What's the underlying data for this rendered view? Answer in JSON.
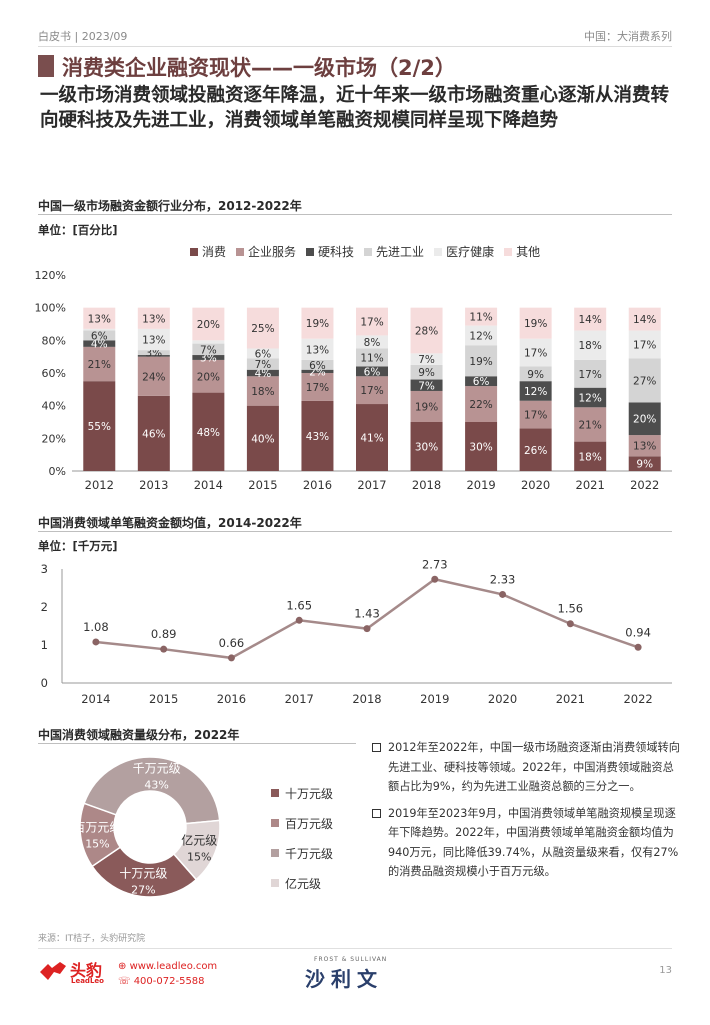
{
  "header": {
    "left": "白皮书 | 2023/09",
    "right": "中国：大消费系列"
  },
  "title": "消费类企业融资现状——一级市场（2/2）",
  "subtitle": "一级市场消费领域投融资逐年降温，近十年来一级市场融资重心逐渐从消费转向硬科技及先进工业，消费领域单笔融资规模同样呈现下降趋势",
  "chart1_title": "中国一级市场融资金额行业分布，2012-2022年",
  "chart1_unit": "单位：[百分比]",
  "chart2_title": "中国消费领域单笔融资金额均值，2014-2022年",
  "chart2_unit": "单位：[千万元]",
  "chart3_title": "中国消费领域融资量级分布，2022年",
  "bullets": [
    "2012年至2022年，中国一级市场融资逐渐由消费领域转向先进工业、硬科技等领域。2022年，中国消费领域融资总额占比为9%，约为先进工业融资总额的三分之一。",
    "2019年至2023年9月，中国消费领域单笔融资规模呈现逐年下降趋势。2022年，中国消费领域单笔融资金额均值为940万元，同比降低39.74%，从融资量级来看，仅有27%的消费品融资规模小于百万元级。"
  ],
  "source": "来源：IT桔子，头豹研究院",
  "footer": {
    "logo_cn": "头豹",
    "logo_en": "LeadLeo",
    "site": "www.leadleo.com",
    "phone": "400-072-5588",
    "partner_en": "FROST & SULLIVAN",
    "partner_cn": "沙利文",
    "page": "13"
  },
  "colors": {
    "consumer": "#7a4a4a",
    "enterprise": "#b89393",
    "hardtech": "#4d4d4d",
    "advanced": "#d4d4d4",
    "medical": "#ebebeb",
    "other": "#f6dcdc",
    "line": "#a58a8a",
    "dot": "#8a6464"
  },
  "chart_data": [
    {
      "type": "bar",
      "stacked": true,
      "categories": [
        "2012",
        "2013",
        "2014",
        "2015",
        "2016",
        "2017",
        "2018",
        "2019",
        "2020",
        "2021",
        "2022"
      ],
      "series": [
        {
          "name": "消费",
          "key": "consumer",
          "values": [
            55,
            46,
            48,
            40,
            43,
            41,
            30,
            30,
            26,
            18,
            9
          ]
        },
        {
          "name": "企业服务",
          "key": "enterprise",
          "values": [
            21,
            24,
            20,
            18,
            17,
            17,
            19,
            22,
            17,
            21,
            13
          ]
        },
        {
          "name": "硬科技",
          "key": "hardtech",
          "values": [
            4,
            1,
            3,
            4,
            2,
            6,
            7,
            6,
            12,
            12,
            20
          ]
        },
        {
          "name": "先进工业",
          "key": "advanced",
          "values": [
            6,
            3,
            7,
            7,
            6,
            11,
            9,
            19,
            9,
            17,
            27
          ]
        },
        {
          "name": "医疗健康",
          "key": "medical",
          "values": [
            1,
            13,
            2,
            6,
            13,
            8,
            7,
            12,
            17,
            18,
            17
          ]
        },
        {
          "name": "其他",
          "key": "other",
          "values": [
            13,
            13,
            20,
            25,
            19,
            17,
            28,
            11,
            19,
            14,
            14
          ]
        }
      ],
      "labels": [
        [
          "55%",
          "21%",
          "4%",
          "6%",
          "",
          "13%"
        ],
        [
          "46%",
          "24%",
          "",
          "3%",
          "13%",
          "13%"
        ],
        [
          "48%",
          "20%",
          "3%",
          "7%",
          "",
          "20%"
        ],
        [
          "40%",
          "18%",
          "4%",
          "7%",
          "6%",
          "25%"
        ],
        [
          "43%",
          "17%",
          "2%",
          "6%",
          "13%",
          "19%"
        ],
        [
          "41%",
          "17%",
          "6%",
          "11%",
          "8%",
          "17%"
        ],
        [
          "30%",
          "19%",
          "7%",
          "9%",
          "7%",
          "28%"
        ],
        [
          "30%",
          "22%",
          "6%",
          "19%",
          "12%",
          "11%"
        ],
        [
          "26%",
          "17%",
          "12%",
          "9%",
          "17%",
          "19%"
        ],
        [
          "18%",
          "21%",
          "12%",
          "17%",
          "18%",
          "14%"
        ],
        [
          "9%",
          "13%",
          "20%",
          "27%",
          "17%",
          "14%"
        ]
      ],
      "yticks": [
        "0%",
        "20%",
        "40%",
        "60%",
        "80%",
        "100%",
        "120%"
      ],
      "ylim": [
        0,
        120
      ]
    },
    {
      "type": "line",
      "x": [
        "2014",
        "2015",
        "2016",
        "2017",
        "2018",
        "2019",
        "2020",
        "2021",
        "2022"
      ],
      "values": [
        1.08,
        0.89,
        0.66,
        1.65,
        1.43,
        2.73,
        2.33,
        1.56,
        0.94
      ],
      "labels": [
        "1.08",
        "0.89",
        "0.66",
        "1.65",
        "1.43",
        "2.73",
        "2.33",
        "1.56",
        "0.94"
      ],
      "yticks": [
        "0",
        "1",
        "2",
        "3"
      ],
      "ylim": [
        0,
        3
      ]
    },
    {
      "type": "pie",
      "donut": true,
      "slices": [
        {
          "name": "十万元级",
          "value": 27,
          "label": "十万元级",
          "pct": "27%",
          "key": "consumer"
        },
        {
          "name": "百万元级",
          "value": 15,
          "label": "百万元级",
          "pct": "15%",
          "key": "enterprise"
        },
        {
          "name": "千万元级",
          "value": 43,
          "label": "千万元级",
          "pct": "43%",
          "key": "line"
        },
        {
          "name": "亿元级",
          "value": 15,
          "label": "亿元级",
          "pct": "15%",
          "key": "medical"
        }
      ]
    }
  ]
}
